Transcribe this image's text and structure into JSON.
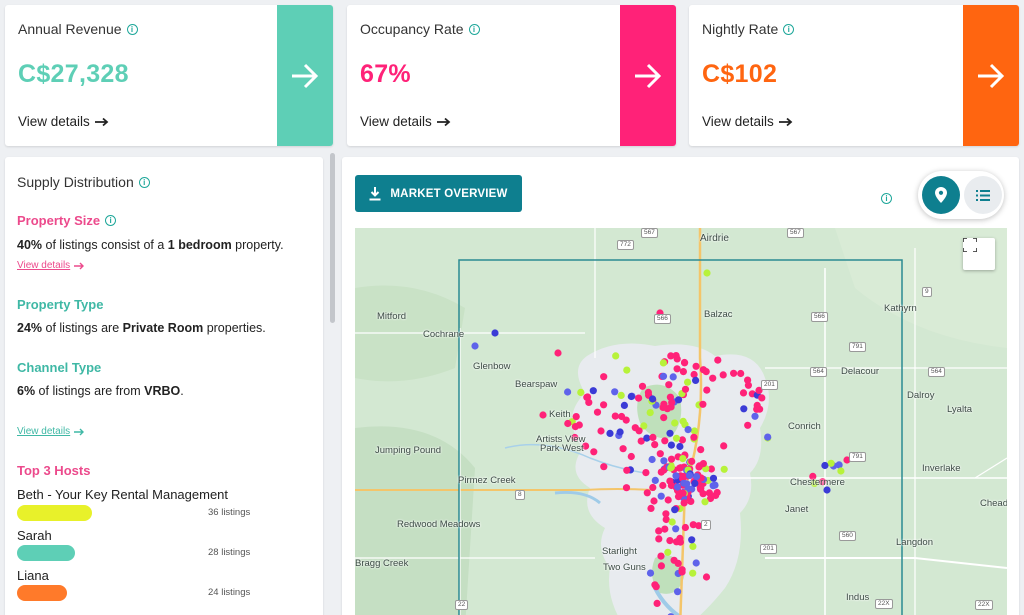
{
  "kpis": [
    {
      "title": "Annual Revenue",
      "value": "C$27,328",
      "link": "View details",
      "color": "#5ecfb6"
    },
    {
      "title": "Occupancy Rate",
      "value": "67%",
      "link": "View details",
      "color": "#ff2278"
    },
    {
      "title": "Nightly Rate",
      "value": "C$102",
      "link": "View details",
      "color": "#ff6510"
    }
  ],
  "supply": {
    "title": "Supply Distribution",
    "property_size": {
      "title": "Property Size",
      "pct": "40%",
      "text_a": " of listings consist of a ",
      "bold": "1 bedroom",
      "text_b": " property.",
      "link": "View details"
    },
    "property_type": {
      "title": "Property Type",
      "pct": "24%",
      "text_a": " of listings are ",
      "bold": "Private Room",
      "text_b": " properties."
    },
    "channel_type": {
      "title": "Channel Type",
      "pct": "6%",
      "text_a": " of listings are from ",
      "bold": "VRBO",
      "text_b": ".",
      "link": "View details"
    },
    "top_hosts": {
      "title": "Top 3 Hosts",
      "hosts": [
        {
          "name": "Beth - Your Key Rental Management",
          "count": "36 listings",
          "color": "#e8f12a",
          "share": 1.0
        },
        {
          "name": "Sarah",
          "count": "28 listings",
          "color": "#5ecfb6",
          "share": 0.78
        },
        {
          "name": "Liana",
          "count": "24 listings",
          "color": "#ff7a2a",
          "share": 0.67
        }
      ]
    }
  },
  "market_overview_button": "MARKET OVERVIEW",
  "map": {
    "labels": {
      "airdrie": "Airdrie",
      "balzac": "Balzac",
      "mitford": "Mitford",
      "cochrane": "Cochrane",
      "glenbow": "Glenbow",
      "bearspaw": "Bearspaw",
      "keith": "Keith",
      "artists_view": "Artists View",
      "park_west": "Park West",
      "jumping_pound": "Jumping Pound",
      "pirmez_creek": "Pirmez Creek",
      "redwood_meadows": "Redwood Meadows",
      "bragg_creek": "Bragg Creek",
      "starlight": "Starlight",
      "two_guns": "Two Guns",
      "kathyrn": "Kathyrn",
      "delacour": "Delacour",
      "dalroy": "Dalroy",
      "lyalta": "Lyalta",
      "conrich": "Conrich",
      "inverlake": "Inverlake",
      "chestermere": "Chestermere",
      "janet": "Janet",
      "langdon": "Langdon",
      "cheadle": "Chead",
      "indus": "Indus"
    },
    "shields": {
      "s772": "772",
      "s567a": "567",
      "s567b": "567",
      "s566a": "566",
      "s566b": "566",
      "s9": "9",
      "s791a": "791",
      "s791b": "791",
      "s564a": "564",
      "s564b": "564",
      "s201a": "201",
      "s201b": "201",
      "s2a": "2",
      "s2b": "2",
      "s8": "8",
      "s560": "560",
      "s22x": "22X",
      "s22xb": "22X",
      "s22": "22"
    }
  }
}
